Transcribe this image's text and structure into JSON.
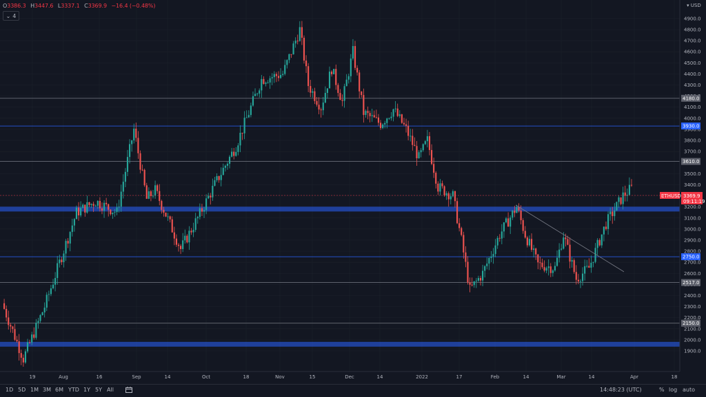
{
  "header": {
    "o_label": "O",
    "o_value": "3386.3",
    "h_label": "H",
    "h_value": "3447.6",
    "l_label": "L",
    "l_value": "3337.1",
    "c_label": "C",
    "c_value": "3369.9",
    "change": "−16.4 (−0.48%)",
    "indicator_count": "4",
    "currency": "USD"
  },
  "chart_data": {
    "type": "candlestick",
    "symbol": "ETHUSD",
    "last_price": "3369.9",
    "countdown": "09:11:19",
    "y_range": [
      1800,
      5000
    ],
    "y_ticks": [
      1900,
      2000,
      2100,
      2200,
      2300,
      2400,
      2500,
      2600,
      2700,
      2800,
      2900,
      3000,
      3100,
      3200,
      3300,
      3400,
      3500,
      3700,
      3800,
      3900,
      4000,
      4100,
      4200,
      4300,
      4400,
      4500,
      4600,
      4700,
      4800,
      4900
    ],
    "level_labels": [
      "4180.0",
      "3930.0",
      "3610.0",
      "2750.0",
      "2517.0",
      "2150.0"
    ],
    "horizontal_levels": [
      {
        "value": 4180,
        "kind": "line",
        "color": "#787b86"
      },
      {
        "value": 3930,
        "kind": "line",
        "color": "#2962ff"
      },
      {
        "value": 3610,
        "kind": "line",
        "color": "#787b86"
      },
      {
        "value": 2750,
        "kind": "line",
        "color": "#2962ff"
      },
      {
        "value": 2517,
        "kind": "line",
        "color": "#787b86"
      },
      {
        "value": 2150,
        "kind": "line",
        "color": "#787b86"
      },
      {
        "value": 3180,
        "kind": "zone",
        "color": "#2962ff"
      },
      {
        "value": 1960,
        "kind": "zone",
        "color": "#2962ff"
      }
    ],
    "x_labels": [
      "19",
      "Aug",
      "16",
      "Sep",
      "14",
      "Oct",
      "18",
      "Nov",
      "15",
      "Dec",
      "14",
      "2022",
      "17",
      "Feb",
      "14",
      "Mar",
      "14",
      "Apr",
      "18"
    ],
    "anchors": [
      {
        "t": 0,
        "v": 2330
      },
      {
        "t": 10,
        "v": 1830
      },
      {
        "t": 20,
        "v": 2300
      },
      {
        "t": 35,
        "v": 3150
      },
      {
        "t": 44,
        "v": 3250
      },
      {
        "t": 54,
        "v": 3150
      },
      {
        "t": 62,
        "v": 3900
      },
      {
        "t": 68,
        "v": 3270
      },
      {
        "t": 72,
        "v": 3350
      },
      {
        "t": 80,
        "v": 3000
      },
      {
        "t": 84,
        "v": 2820
      },
      {
        "t": 92,
        "v": 3100
      },
      {
        "t": 100,
        "v": 3400
      },
      {
        "t": 110,
        "v": 3750
      },
      {
        "t": 122,
        "v": 4350
      },
      {
        "t": 132,
        "v": 4400
      },
      {
        "t": 140,
        "v": 4800
      },
      {
        "t": 144,
        "v": 4300
      },
      {
        "t": 150,
        "v": 4100
      },
      {
        "t": 155,
        "v": 4450
      },
      {
        "t": 160,
        "v": 4150
      },
      {
        "t": 165,
        "v": 4600
      },
      {
        "t": 170,
        "v": 4050
      },
      {
        "t": 178,
        "v": 3950
      },
      {
        "t": 184,
        "v": 4080
      },
      {
        "t": 190,
        "v": 3900
      },
      {
        "t": 196,
        "v": 3640
      },
      {
        "t": 200,
        "v": 3800
      },
      {
        "t": 205,
        "v": 3380
      },
      {
        "t": 212,
        "v": 3300
      },
      {
        "t": 216,
        "v": 2900
      },
      {
        "t": 220,
        "v": 2450
      },
      {
        "t": 226,
        "v": 2600
      },
      {
        "t": 234,
        "v": 2950
      },
      {
        "t": 242,
        "v": 3200
      },
      {
        "t": 246,
        "v": 2950
      },
      {
        "t": 252,
        "v": 2680
      },
      {
        "t": 260,
        "v": 2650
      },
      {
        "t": 264,
        "v": 2950
      },
      {
        "t": 270,
        "v": 2550
      },
      {
        "t": 276,
        "v": 2650
      },
      {
        "t": 284,
        "v": 3050
      },
      {
        "t": 292,
        "v": 3300
      },
      {
        "t": 296,
        "v": 3370
      }
    ]
  },
  "bottom": {
    "timeframes": [
      "1D",
      "5D",
      "1M",
      "3M",
      "6M",
      "YTD",
      "1Y",
      "5Y",
      "All"
    ],
    "time": "14:48:23 (UTC)",
    "percent": "%",
    "log": "log",
    "auto": "auto"
  }
}
